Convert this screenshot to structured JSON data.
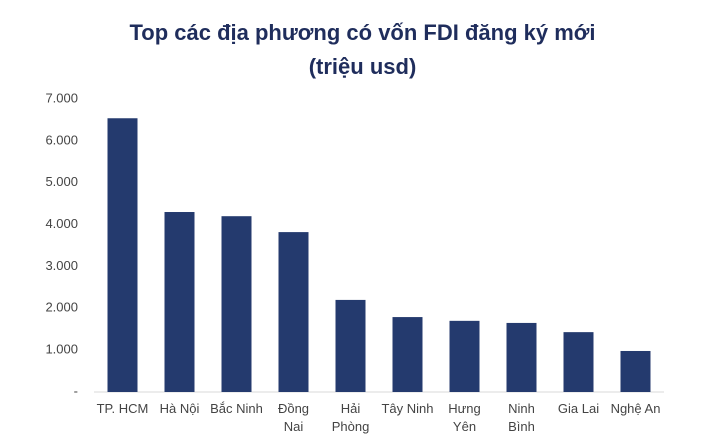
{
  "chart_data": {
    "type": "bar",
    "title": "Top các địa phương có vốn FDI đăng ký mới",
    "subtitle": "(triệu usd)",
    "categories": [
      "TP. HCM",
      "Hà Nội",
      "Bắc Ninh",
      "Đồng\nNai",
      "Hải\nPhòng",
      "Tây Ninh",
      "Hưng\nYên",
      "Ninh\nBình",
      "Gia Lai",
      "Nghệ An"
    ],
    "values": [
      6540,
      4300,
      4200,
      3820,
      2200,
      1790,
      1700,
      1650,
      1430,
      980
    ],
    "color": "#243a6e",
    "ylim": [
      0,
      7000
    ],
    "yticks": [
      {
        "value": 0,
        "label": "-"
      },
      {
        "value": 1000,
        "label": "1.000"
      },
      {
        "value": 2000,
        "label": "2.000"
      },
      {
        "value": 3000,
        "label": "3.000"
      },
      {
        "value": 4000,
        "label": "4.000"
      },
      {
        "value": 5000,
        "label": "5.000"
      },
      {
        "value": 6000,
        "label": "6.000"
      },
      {
        "value": 7000,
        "label": "7.000"
      }
    ],
    "grid": false
  }
}
